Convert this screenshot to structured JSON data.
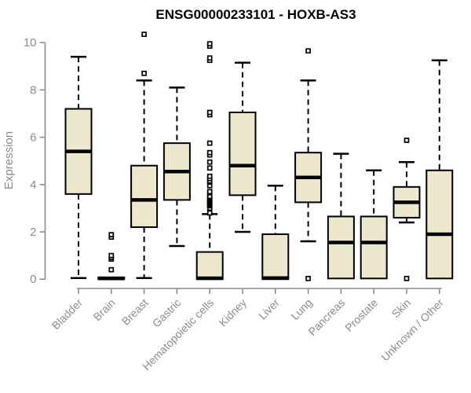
{
  "chart_data": {
    "type": "boxplot",
    "title": "ENSG00000233101 - HOXB-AS3",
    "xlabel": "",
    "ylabel": "Expression",
    "ylim": [
      0,
      10
    ],
    "yticks": [
      0,
      2,
      4,
      6,
      8,
      10
    ],
    "grid": false,
    "legend": "none",
    "categories": [
      "Bladder",
      "Brain",
      "Breast",
      "Gastric",
      "Hematopoietic cells",
      "Kidney",
      "Liver",
      "Lung",
      "Pancreas",
      "Prostate",
      "Skin",
      "Unknown / Other"
    ],
    "boxes": [
      {
        "category": "Bladder",
        "whisker_low": 0.05,
        "q1": 3.6,
        "median": 5.4,
        "q3": 7.2,
        "whisker_high": 9.4,
        "outliers": []
      },
      {
        "category": "Brain",
        "whisker_low": 0.0,
        "q1": 0.0,
        "median": 0.03,
        "q3": 0.08,
        "whisker_high": 0.1,
        "outliers": [
          0.4,
          0.85,
          0.92,
          1.0,
          1.78,
          1.88
        ]
      },
      {
        "category": "Breast",
        "whisker_low": 0.05,
        "q1": 2.2,
        "median": 3.35,
        "q3": 4.8,
        "whisker_high": 8.4,
        "outliers": [
          8.7,
          10.35
        ]
      },
      {
        "category": "Gastric",
        "whisker_low": 1.4,
        "q1": 3.35,
        "median": 4.55,
        "q3": 5.75,
        "whisker_high": 8.1,
        "outliers": []
      },
      {
        "category": "Hematopoietic cells",
        "whisker_low": 0.0,
        "q1": 0.0,
        "median": 0.04,
        "q3": 1.15,
        "whisker_high": 2.75,
        "outliers": [
          2.8,
          3.0,
          3.1,
          3.15,
          3.2,
          3.25,
          3.3,
          3.35,
          3.4,
          3.45,
          3.5,
          3.65,
          3.7,
          3.95,
          4.1,
          4.15,
          4.25,
          4.35,
          4.7,
          4.95,
          5.25,
          5.35,
          5.75,
          6.95,
          7.05,
          9.25,
          9.35,
          9.85,
          9.95
        ]
      },
      {
        "category": "Kidney",
        "whisker_low": 2.0,
        "q1": 3.55,
        "median": 4.8,
        "q3": 7.05,
        "whisker_high": 9.15,
        "outliers": []
      },
      {
        "category": "Liver",
        "whisker_low": 0.0,
        "q1": 0.0,
        "median": 0.05,
        "q3": 1.9,
        "whisker_high": 3.95,
        "outliers": []
      },
      {
        "category": "Lung",
        "whisker_low": 1.6,
        "q1": 3.25,
        "median": 4.3,
        "q3": 5.35,
        "whisker_high": 8.4,
        "outliers": [
          0.03,
          9.65
        ]
      },
      {
        "category": "Pancreas",
        "whisker_low": 0.03,
        "q1": 0.03,
        "median": 1.55,
        "q3": 2.65,
        "whisker_high": 5.3,
        "outliers": []
      },
      {
        "category": "Prostate",
        "whisker_low": 0.03,
        "q1": 0.03,
        "median": 1.55,
        "q3": 2.65,
        "whisker_high": 4.6,
        "outliers": []
      },
      {
        "category": "Skin",
        "whisker_low": 2.4,
        "q1": 2.6,
        "median": 3.25,
        "q3": 3.9,
        "whisker_high": 4.95,
        "outliers": [
          0.03,
          5.87
        ]
      },
      {
        "category": "Unknown / Other",
        "whisker_low": 0.03,
        "q1": 0.03,
        "median": 1.9,
        "q3": 4.6,
        "whisker_high": 9.25,
        "outliers": []
      }
    ],
    "colors": {
      "box_fill": "#EDE7CD",
      "box_stroke": "#000000",
      "median": "#000000",
      "whisker": "#000000",
      "outlier_stroke": "#000000",
      "outlier_fill": "#FFFFFF",
      "axis": "#8C8C8C",
      "tick_label": "#8C8C8C",
      "title": "#000000",
      "background": "#FFFFFF"
    }
  }
}
